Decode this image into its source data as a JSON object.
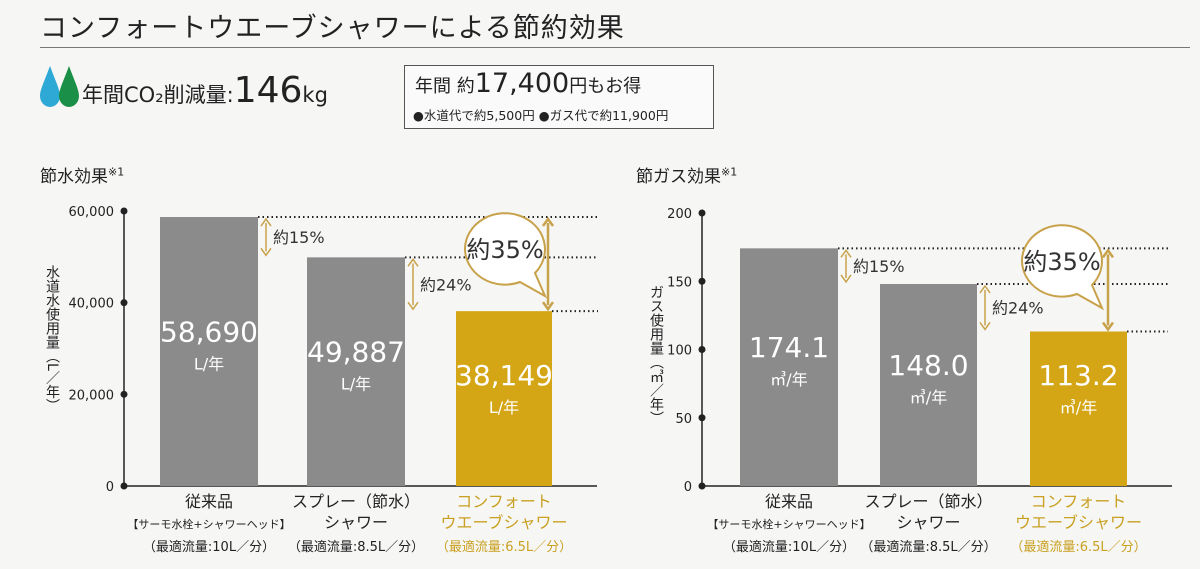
{
  "title": "コンフォートウエーブシャワーによる節約効果",
  "co2": {
    "label": "年間CO₂削減量:",
    "value": "146",
    "unit": "kg"
  },
  "savings": {
    "prefix": "年間 約",
    "value": "17,400",
    "suffix": "円もお得",
    "water": "●水道代で約5,500円",
    "gas": "●ガス代で約11,900円"
  },
  "colors": {
    "gray": "#8b8b8b",
    "gold": "#d4a514",
    "arrow": "#c8a24a",
    "drop_blue": "#2ea9d6",
    "drop_green": "#1a8f47"
  },
  "chart_data": [
    {
      "type": "bar",
      "title": "節水効果",
      "title_note": "※1",
      "ylabel": "水道水使用量（L／年）",
      "ylim": [
        0,
        60000
      ],
      "yticks": [
        "0",
        "20,000",
        "40,000",
        "60,000"
      ],
      "ytick_values": [
        0,
        20000,
        40000,
        60000
      ],
      "categories": [
        {
          "lines": [
            "従来品",
            "【サーモ水栓+シャワーヘッド】",
            "（最適流量:10L／分）"
          ]
        },
        {
          "lines": [
            "スプレー（節水）",
            "シャワー",
            "（最適流量:8.5L／分）"
          ]
        },
        {
          "lines": [
            "コンフォート",
            "ウエーブシャワー",
            "（最適流量:6.5L／分）"
          ]
        }
      ],
      "values": [
        58690,
        49887,
        38149
      ],
      "value_labels": [
        "58,690",
        "49,887",
        "38,149"
      ],
      "unit": "L/年",
      "highlight_index": 2,
      "annotations": [
        {
          "from": 0,
          "to": 1,
          "label": "約15%"
        },
        {
          "from": 1,
          "to": 2,
          "label": "約24%"
        },
        {
          "from": 0,
          "to": 2,
          "label": "約35%",
          "bubble": true
        }
      ]
    },
    {
      "type": "bar",
      "title": "節ガス効果",
      "title_note": "※1",
      "ylabel": "ガス使用量（㎥／年）",
      "ylim": [
        0,
        200
      ],
      "yticks": [
        "0",
        "50",
        "100",
        "150",
        "200"
      ],
      "ytick_values": [
        0,
        50,
        100,
        150,
        200
      ],
      "categories": [
        {
          "lines": [
            "従来品",
            "【サーモ水栓+シャワーヘッド】",
            "（最適流量:10L／分）"
          ]
        },
        {
          "lines": [
            "スプレー（節水）",
            "シャワー",
            "（最適流量:8.5L／分）"
          ]
        },
        {
          "lines": [
            "コンフォート",
            "ウエーブシャワー",
            "（最適流量:6.5L／分）"
          ]
        }
      ],
      "values": [
        174.1,
        148.0,
        113.2
      ],
      "value_labels": [
        "174.1",
        "148.0",
        "113.2"
      ],
      "unit": "㎥/年",
      "highlight_index": 2,
      "annotations": [
        {
          "from": 0,
          "to": 1,
          "label": "約15%"
        },
        {
          "from": 1,
          "to": 2,
          "label": "約24%"
        },
        {
          "from": 0,
          "to": 2,
          "label": "約35%",
          "bubble": true
        }
      ]
    }
  ]
}
